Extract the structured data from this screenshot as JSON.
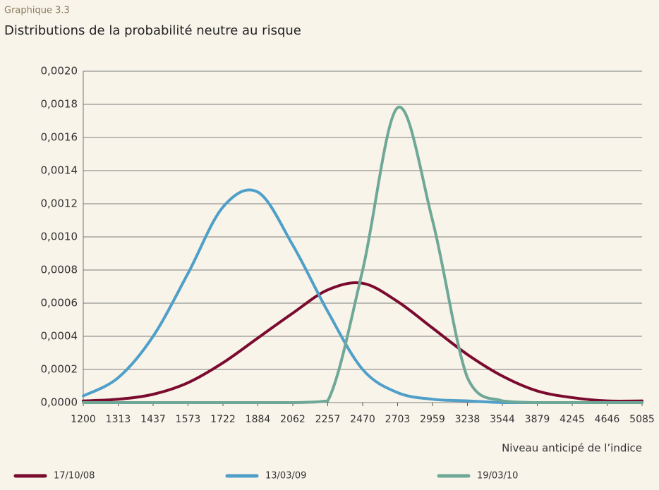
{
  "chart_data": {
    "type": "line",
    "label": "Graphique 3.3",
    "title": "Distributions de la probabilité neutre au risque",
    "x_label": "Niveau anticipé de l’indice",
    "categories": [
      "1200",
      "1313",
      "1437",
      "1573",
      "1722",
      "1884",
      "2062",
      "2257",
      "2470",
      "2703",
      "2959",
      "3238",
      "3544",
      "3879",
      "4245",
      "4646",
      "5085"
    ],
    "series": [
      {
        "name": "17/10/08",
        "color": "#7a0a2e",
        "values": [
          1e-05,
          2e-05,
          5e-05,
          0.00012,
          0.00024,
          0.00039,
          0.00054,
          0.00068,
          0.00072,
          0.00061,
          0.00045,
          0.00029,
          0.00016,
          7e-05,
          3e-05,
          1e-05,
          1e-05
        ]
      },
      {
        "name": "13/03/09",
        "color": "#4f9fc9",
        "values": [
          4e-05,
          0.00015,
          0.0004,
          0.00078,
          0.00118,
          0.00127,
          0.00095,
          0.00055,
          0.0002,
          6e-05,
          2e-05,
          1e-05,
          0,
          0,
          0,
          0,
          0
        ]
      },
      {
        "name": "19/03/10",
        "color": "#6fa896",
        "values": [
          0,
          0,
          0,
          0,
          0,
          0,
          0,
          1e-05,
          0.0008,
          0.00178,
          0.0011,
          0.00015,
          1e-05,
          0,
          0,
          0,
          0
        ]
      }
    ],
    "ylim": [
      0,
      0.002
    ],
    "yticks": [
      {
        "value": 0,
        "label": "0,0000"
      },
      {
        "value": 0.0002,
        "label": "0,0002"
      },
      {
        "value": 0.0004,
        "label": "0,0004"
      },
      {
        "value": 0.0006,
        "label": "0,0006"
      },
      {
        "value": 0.0008,
        "label": "0,0008"
      },
      {
        "value": 0.001,
        "label": "0,0010"
      },
      {
        "value": 0.0012,
        "label": "0,0012"
      },
      {
        "value": 0.0014,
        "label": "0,0014"
      },
      {
        "value": 0.0016,
        "label": "0,0016"
      },
      {
        "value": 0.0018,
        "label": "0,0018"
      },
      {
        "value": 0.002,
        "label": "0,0020"
      }
    ],
    "grid": true,
    "legend": "bottom"
  }
}
